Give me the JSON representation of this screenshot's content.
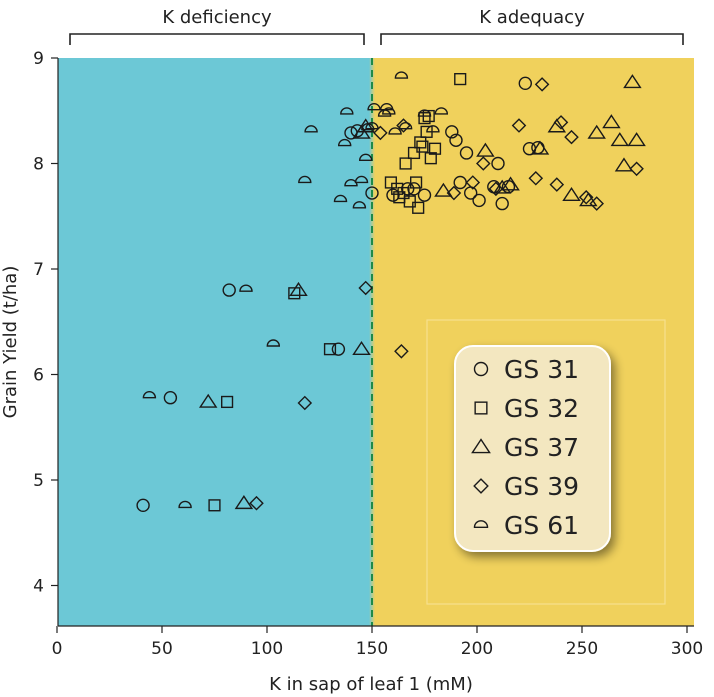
{
  "chart_data": {
    "type": "scatter",
    "xlabel": "K in sap of leaf 1 (mM)",
    "ylabel": "Grain Yield (t/ha)",
    "xlim": [
      0,
      300
    ],
    "ylim": [
      3.6,
      9
    ],
    "xticks": [
      0,
      50,
      100,
      150,
      200,
      250,
      300
    ],
    "yticks": [
      4,
      5,
      6,
      7,
      8,
      9
    ],
    "grid": false,
    "legend_position": "inside-lower-right",
    "threshold_x": 150,
    "regions": [
      {
        "label": "K deficiency",
        "x_range": [
          0,
          150
        ],
        "color": "#6cc8d6"
      },
      {
        "label": "K adequacy",
        "x_range": [
          150,
          300
        ],
        "color": "#f0d15c"
      }
    ],
    "series": [
      {
        "name": "GS 31",
        "marker": "circle",
        "points": [
          [
            41,
            4.76
          ],
          [
            54,
            5.78
          ],
          [
            82,
            6.8
          ],
          [
            134,
            6.24
          ],
          [
            140,
            8.29
          ],
          [
            143,
            8.31
          ],
          [
            150,
            7.72
          ],
          [
            160,
            7.7
          ],
          [
            167,
            7.76
          ],
          [
            170,
            7.76
          ],
          [
            175,
            7.7
          ],
          [
            188,
            8.3
          ],
          [
            190,
            8.22
          ],
          [
            192,
            7.82
          ],
          [
            195,
            8.1
          ],
          [
            197,
            7.72
          ],
          [
            201,
            7.65
          ],
          [
            208,
            7.78
          ],
          [
            210,
            8.0
          ],
          [
            212,
            7.62
          ],
          [
            215,
            7.78
          ],
          [
            223,
            8.76
          ],
          [
            225,
            8.14
          ],
          [
            229,
            8.15
          ]
        ]
      },
      {
        "name": "GS 32",
        "marker": "square",
        "points": [
          [
            75,
            4.76
          ],
          [
            81,
            5.74
          ],
          [
            113,
            6.77
          ],
          [
            130,
            6.24
          ],
          [
            159,
            7.82
          ],
          [
            162,
            7.76
          ],
          [
            163,
            7.68
          ],
          [
            165,
            7.72
          ],
          [
            166,
            8.0
          ],
          [
            168,
            7.64
          ],
          [
            170,
            8.1
          ],
          [
            171,
            7.82
          ],
          [
            172,
            7.58
          ],
          [
            173,
            8.2
          ],
          [
            174,
            8.16
          ],
          [
            175,
            8.43
          ],
          [
            176,
            8.3
          ],
          [
            177,
            8.45
          ],
          [
            178,
            8.05
          ],
          [
            180,
            8.14
          ],
          [
            192,
            8.8
          ]
        ]
      },
      {
        "name": "GS 37",
        "marker": "triangle",
        "points": [
          [
            72,
            5.74
          ],
          [
            89,
            4.78
          ],
          [
            115,
            6.8
          ],
          [
            145,
            6.24
          ],
          [
            145,
            8.29
          ],
          [
            147,
            8.35
          ],
          [
            184,
            7.74
          ],
          [
            204,
            8.12
          ],
          [
            212,
            7.77
          ],
          [
            216,
            7.8
          ],
          [
            230,
            8.14
          ],
          [
            238,
            8.35
          ],
          [
            245,
            7.7
          ],
          [
            253,
            7.65
          ],
          [
            257,
            8.29
          ],
          [
            264,
            8.39
          ],
          [
            268,
            8.22
          ],
          [
            270,
            7.98
          ],
          [
            274,
            8.77
          ],
          [
            276,
            8.22
          ]
        ]
      },
      {
        "name": "GS 39",
        "marker": "diamond",
        "points": [
          [
            95,
            4.78
          ],
          [
            118,
            5.73
          ],
          [
            147,
            6.82
          ],
          [
            164,
            6.22
          ],
          [
            154,
            8.29
          ],
          [
            165,
            8.36
          ],
          [
            189,
            7.72
          ],
          [
            198,
            7.82
          ],
          [
            203,
            8.0
          ],
          [
            209,
            7.76
          ],
          [
            220,
            8.36
          ],
          [
            228,
            7.86
          ],
          [
            231,
            8.75
          ],
          [
            238,
            7.8
          ],
          [
            240,
            8.39
          ],
          [
            245,
            8.25
          ],
          [
            252,
            7.68
          ],
          [
            257,
            7.62
          ],
          [
            276,
            7.95
          ]
        ]
      },
      {
        "name": "GS 61",
        "marker": "semicircle",
        "points": [
          [
            44,
            5.8
          ],
          [
            61,
            4.76
          ],
          [
            90,
            6.81
          ],
          [
            103,
            6.29
          ],
          [
            118,
            7.84
          ],
          [
            121,
            8.32
          ],
          [
            135,
            7.66
          ],
          [
            137,
            8.19
          ],
          [
            140,
            7.81
          ],
          [
            144,
            7.6
          ],
          [
            145,
            7.84
          ],
          [
            147,
            8.05
          ],
          [
            148,
            8.34
          ],
          [
            150,
            8.35
          ],
          [
            151,
            8.53
          ],
          [
            157,
            8.53
          ],
          [
            158,
            8.49
          ],
          [
            161,
            8.3
          ],
          [
            166,
            8.35
          ],
          [
            175,
            8.47
          ],
          [
            179,
            8.32
          ],
          [
            183,
            8.49
          ],
          [
            138,
            8.49
          ],
          [
            156,
            8.47
          ],
          [
            164,
            8.83
          ]
        ]
      }
    ]
  }
}
